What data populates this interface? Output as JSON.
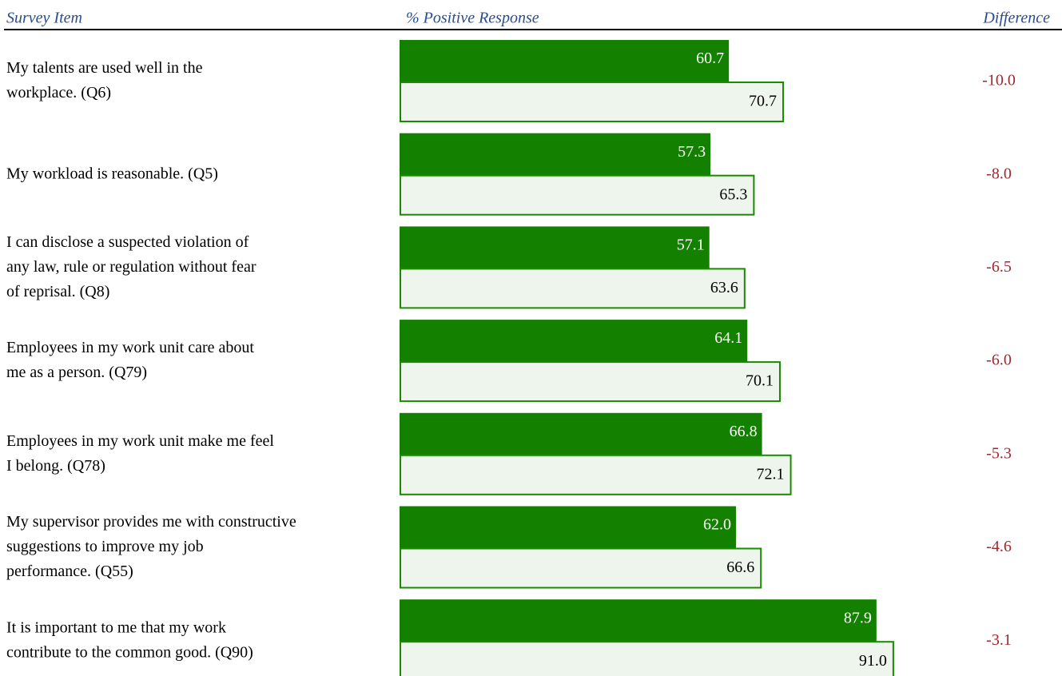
{
  "chart_data": {
    "type": "bar",
    "headers": [
      "Survey Item",
      "% Positive Response",
      "Difference"
    ],
    "categories": [
      [
        "My talents are used well in the",
        "workplace. (Q6)"
      ],
      [
        "My workload is reasonable. (Q5)"
      ],
      [
        "I can disclose a suspected violation of",
        "any law, rule or regulation without fear",
        "of reprisal. (Q8)"
      ],
      [
        "Employees in my work unit care about",
        "me as a person. (Q79)"
      ],
      [
        "Employees in my work unit make me feel",
        "I belong. (Q78)"
      ],
      [
        "My supervisor provides me with constructive",
        "suggestions to improve my job",
        "performance. (Q55)"
      ],
      [
        "It is important to me that my work",
        "contribute to the common good. (Q90)"
      ]
    ],
    "series": [
      {
        "color": "#138000",
        "values": [
          60.7,
          57.3,
          57.1,
          64.1,
          66.8,
          62.0,
          87.9
        ],
        "value_labels": [
          "60.7",
          "57.3",
          "57.1",
          "64.1",
          "66.8",
          "62.0",
          "87.9"
        ]
      },
      {
        "color": "#eef5ec",
        "values": [
          70.7,
          65.3,
          63.6,
          70.1,
          72.1,
          66.6,
          91.0
        ],
        "value_labels": [
          "70.7",
          "65.3",
          "63.6",
          "70.1",
          "72.1",
          "66.6",
          "91.0"
        ]
      }
    ],
    "differences": {
      "color": "#a0282e",
      "values": [
        -10.0,
        -8.0,
        -6.5,
        -6.0,
        -5.3,
        -4.6,
        -3.1
      ],
      "value_labels": [
        "-10.0",
        "-8.0",
        "-6.5",
        "-6.0",
        "-5.3",
        "-4.6",
        "-3.1"
      ]
    },
    "xlim": [
      0,
      100
    ]
  }
}
